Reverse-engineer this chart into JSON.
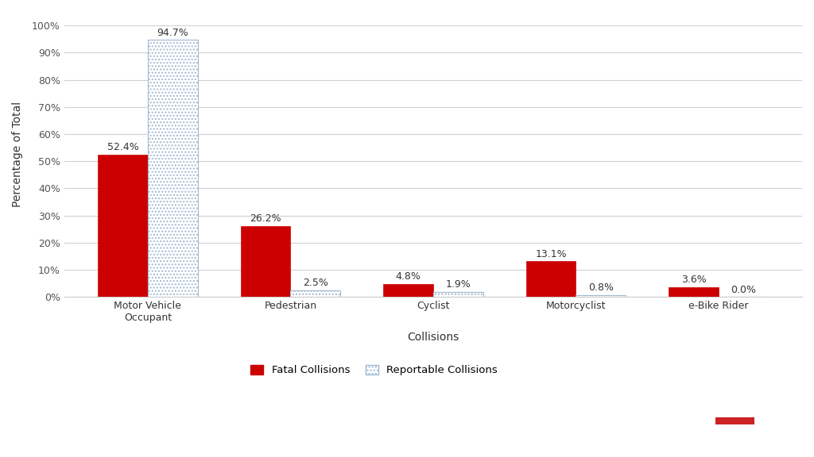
{
  "categories": [
    "Motor Vehicle\nOccupant",
    "Pedestrian",
    "Cyclist",
    "Motorcyclist",
    "e-Bike Rider"
  ],
  "fatal_values": [
    52.4,
    26.2,
    4.8,
    13.1,
    3.6
  ],
  "reportable_values": [
    94.7,
    2.5,
    1.9,
    0.8,
    0.0
  ],
  "fatal_color": "#cc0000",
  "reportable_facecolor": "white",
  "reportable_edgecolor": "#a0b8d0",
  "reportable_hatch": "....",
  "xlabel": "Collisions",
  "ylabel": "Percentage of Total",
  "ylim": [
    0,
    105
  ],
  "yticks": [
    0,
    10,
    20,
    30,
    40,
    50,
    60,
    70,
    80,
    90,
    100
  ],
  "ytick_labels": [
    "0%",
    "10%",
    "20%",
    "30%",
    "40%",
    "50%",
    "60%",
    "70%",
    "80%",
    "90%",
    "100%"
  ],
  "bar_width": 0.35,
  "background_color": "#ffffff",
  "grid_color": "#d0d0d0",
  "legend_fatal": "Fatal Collisions",
  "legend_reportable": "Reportable Collisions",
  "logo_bg_color": "#1d2f5c",
  "logo_red": "#cc2222",
  "label_fontsize": 9,
  "axis_fontsize": 10,
  "tick_fontsize": 9
}
